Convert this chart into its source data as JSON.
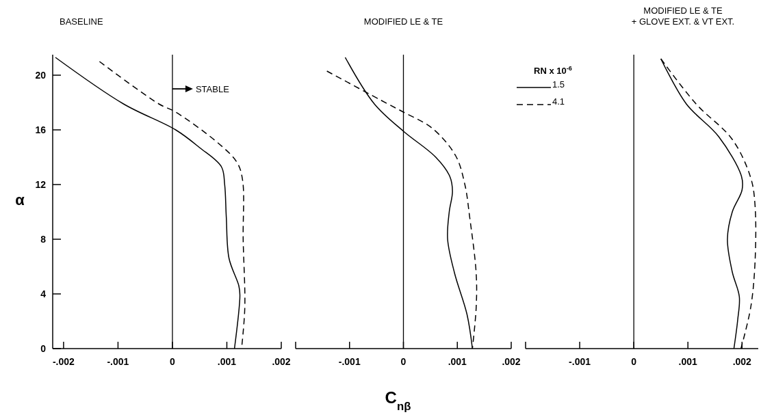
{
  "chart_data": [
    {
      "type": "line",
      "title": "BASELINE",
      "ylabel": "α",
      "xlim": [
        -0.0022,
        0.002
      ],
      "xticks": [
        {
          "value": -0.002,
          "label": "-.002"
        },
        {
          "value": -0.001,
          "label": "-.001"
        },
        {
          "value": 0,
          "label": "0"
        },
        {
          "value": 0.001,
          "label": ".001"
        },
        {
          "value": 0.002,
          "label": ".002"
        }
      ],
      "ylim": [
        0,
        21.5
      ],
      "yticks": [
        0,
        4,
        8,
        12,
        16,
        20
      ],
      "annotations": [
        {
          "text": "STABLE",
          "x": 0,
          "y": 19
        }
      ],
      "ref_lines": [
        {
          "axis": "x",
          "value": 0
        }
      ],
      "series": [
        {
          "color": "#000000",
          "line_style": "solid",
          "x": [
            -0.00215,
            -0.0009,
            6e-05,
            0.0005,
            0.0009,
            0.00096,
            0.00099,
            0.00104,
            0.00122,
            0.00124,
            0.00114
          ],
          "values": [
            21.3,
            17.9,
            16,
            14.7,
            13.3,
            12,
            9.6,
            6.6,
            4.6,
            3.9,
            0
          ]
        },
        {
          "color": "#000000",
          "line_style": "dashed",
          "x": [
            -0.00134,
            -0.00025,
            6e-05,
            0.00085,
            0.00119,
            0.00129,
            0.0013,
            0.00133,
            0.00127
          ],
          "values": [
            21,
            17.9,
            17.3,
            15,
            13.6,
            12.3,
            8,
            3,
            0
          ]
        }
      ]
    },
    {
      "type": "line",
      "title": "MODIFIED LE & TE",
      "xlabel": "C$_{nβ}$",
      "legend_title": "RN x 10$^{-6}$",
      "legend": "top right",
      "tick_labels": "x",
      "xlim": [
        -0.002,
        0.002
      ],
      "xticks": [
        {
          "value": -0.002,
          "label": null
        },
        {
          "value": -0.001,
          "label": "-.001"
        },
        {
          "value": 0,
          "label": "0"
        },
        {
          "value": 0.001,
          "label": ".001"
        },
        {
          "value": 0.002,
          "label": ".002"
        }
      ],
      "ylim": [
        0,
        21.5
      ],
      "ref_lines": [
        {
          "axis": "x",
          "value": 0
        }
      ],
      "series": [
        {
          "name": "1.5",
          "color": "#000000",
          "line_style": "solid",
          "x": [
            -0.00108,
            -0.00054,
            0,
            0.0006,
            0.00086,
            0.00091,
            0.00085,
            0.00082,
            0.00095,
            0.00118,
            0.00128
          ],
          "values": [
            21.3,
            17.9,
            15.9,
            14,
            12.6,
            11.5,
            10,
            8,
            5.5,
            2.5,
            0
          ]
        },
        {
          "name": "4.1",
          "color": "#000000",
          "line_style": "dashed",
          "x": [
            -0.00142,
            -0.00029,
            0,
            0.00054,
            0.00097,
            0.00114,
            0.00123,
            0.00135,
            0.00135,
            0.00128
          ],
          "values": [
            20.3,
            17.9,
            17.3,
            16.1,
            14.1,
            12,
            9.6,
            5.5,
            3,
            0
          ]
        }
      ]
    },
    {
      "type": "line",
      "title": "MODIFIED LE & TE\n+ GLOVE EXT. & VT EXT.",
      "tick_labels": "x",
      "xlim": [
        -0.002,
        0.0023
      ],
      "xticks": [
        {
          "value": -0.002,
          "label": null
        },
        {
          "value": -0.001,
          "label": "-.001"
        },
        {
          "value": 0,
          "label": "0"
        },
        {
          "value": 0.001,
          "label": ".001"
        },
        {
          "value": 0.002,
          "label": ".002"
        }
      ],
      "ylim": [
        0,
        21.5
      ],
      "ref_lines": [
        {
          "axis": "x",
          "value": 0
        }
      ],
      "series": [
        {
          "color": "#000000",
          "line_style": "solid",
          "x": [
            0.0005,
            0.00097,
            0.00157,
            0.00199,
            0.002,
            0.00182,
            0.00173,
            0.00182,
            0.00195,
            0.00192,
            0.00185
          ],
          "values": [
            21.2,
            17.9,
            15.5,
            12.6,
            11.6,
            10,
            8,
            5.6,
            3.8,
            2.1,
            0
          ]
        },
        {
          "color": "#000000",
          "line_style": "dashed",
          "x": [
            0.0005,
            0.00115,
            0.00182,
            0.00216,
            0.00224,
            0.00224,
            0.00216,
            0.00198
          ],
          "values": [
            21.2,
            17.9,
            15.3,
            12.5,
            10.5,
            6.3,
            3,
            0
          ]
        }
      ]
    }
  ]
}
